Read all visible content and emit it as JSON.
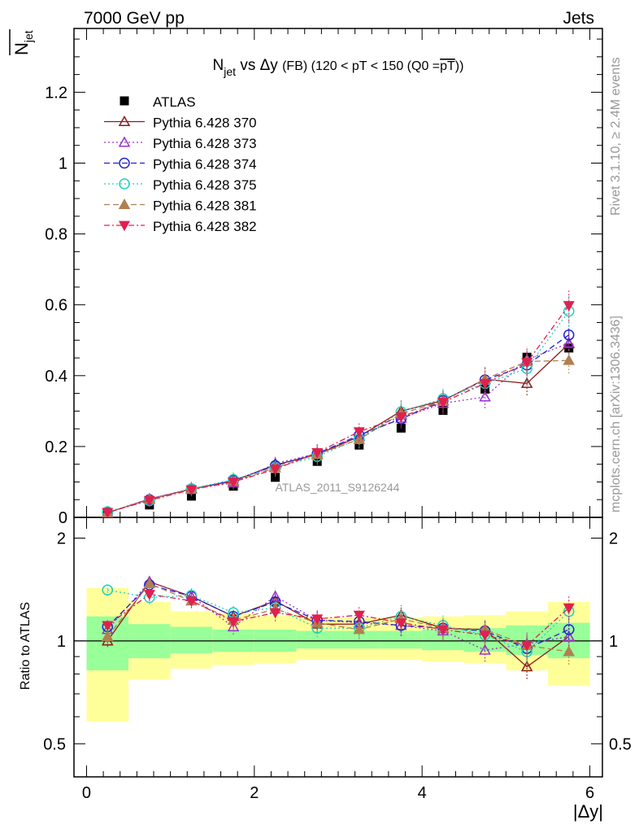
{
  "header": {
    "left": "7000 GeV pp",
    "right": "Jets"
  },
  "title": {
    "main": "N",
    "main_sub": "jet",
    "rest": " vs Δy ",
    "small1": "(FB)",
    "rest2": " (120 < pT < 150 (Q0 =",
    "over": "pT",
    "end": "))"
  },
  "ylabel_top": {
    "main": "N",
    "sub": "jet"
  },
  "ylabel_ratio": "Ratio to ATLAS",
  "xlabel": "|Δy|",
  "side_label_top": "Rivet 3.1.10, ≥ 2.4M events",
  "side_label_bottom": "mcplots.cern.ch [arXiv:1306.3436]",
  "watermark": "ATLAS_2011_S9126244",
  "chart_data": {
    "type": "scatter",
    "x": [
      0.25,
      0.75,
      1.25,
      1.75,
      2.25,
      2.75,
      3.25,
      3.75,
      4.25,
      4.75,
      5.25,
      5.75
    ],
    "xlim": [
      -0.15,
      6.15
    ],
    "ylim": [
      0,
      1.38
    ],
    "ratio_ylim": [
      0.4,
      2.3
    ],
    "ratio_log": true,
    "xticks": [
      0,
      2,
      4,
      6
    ],
    "xtick_labels": [
      "0",
      "2",
      "4",
      "6"
    ],
    "yticks": [
      0,
      0.2,
      0.4,
      0.6,
      0.8,
      1,
      1.2
    ],
    "ytick_labels": [
      "0",
      "0.2",
      "0.4",
      "0.6",
      "0.8",
      "1",
      "1.2"
    ],
    "ratio_yticks": [
      0.5,
      1,
      2
    ],
    "ratio_ytick_labels": [
      "0.5",
      "1",
      "2"
    ],
    "data_series": {
      "name": "ATLAS",
      "values": [
        0.013,
        0.035,
        0.06,
        0.088,
        0.113,
        0.158,
        0.204,
        0.252,
        0.302,
        0.362,
        0.452,
        0.478
      ],
      "color": "#000000"
    },
    "band_green": [
      [
        0.82,
        1.18
      ],
      [
        0.89,
        1.12
      ],
      [
        0.92,
        1.1
      ],
      [
        0.93,
        1.08
      ],
      [
        0.93,
        1.08
      ],
      [
        0.95,
        1.07
      ],
      [
        0.95,
        1.07
      ],
      [
        0.95,
        1.07
      ],
      [
        0.94,
        1.08
      ],
      [
        0.93,
        1.09
      ],
      [
        0.91,
        1.11
      ],
      [
        0.89,
        1.13
      ]
    ],
    "band_yellow": [
      [
        0.58,
        1.43
      ],
      [
        0.77,
        1.3
      ],
      [
        0.83,
        1.22
      ],
      [
        0.85,
        1.2
      ],
      [
        0.86,
        1.19
      ],
      [
        0.88,
        1.17
      ],
      [
        0.88,
        1.17
      ],
      [
        0.88,
        1.17
      ],
      [
        0.87,
        1.18
      ],
      [
        0.86,
        1.19
      ],
      [
        0.82,
        1.22
      ],
      [
        0.74,
        1.3
      ]
    ],
    "series": [
      {
        "name": "Pythia 6.428 370",
        "color": "#8b1a1a",
        "marker": "triangle-open",
        "dash": "",
        "values": [
          0.013,
          0.052,
          0.08,
          0.103,
          0.148,
          0.177,
          0.228,
          0.3,
          0.33,
          0.39,
          0.378,
          0.49
        ],
        "ratio": [
          1.0,
          1.49,
          1.35,
          1.18,
          1.31,
          1.12,
          1.12,
          1.19,
          1.09,
          1.08,
          0.84,
          1.03
        ]
      },
      {
        "name": "Pythia 6.428 373",
        "color": "#9932cc",
        "marker": "triangle-open",
        "dash": "2,3",
        "values": [
          0.014,
          0.052,
          0.081,
          0.097,
          0.152,
          0.18,
          0.23,
          0.28,
          0.322,
          0.34,
          0.445,
          0.492
        ],
        "ratio": [
          1.08,
          1.49,
          1.35,
          1.1,
          1.35,
          1.15,
          1.13,
          1.11,
          1.07,
          0.94,
          0.98,
          1.03
        ]
      },
      {
        "name": "Pythia 6.428 374",
        "color": "#2222cc",
        "marker": "circle-open",
        "dash": "7,4",
        "values": [
          0.014,
          0.05,
          0.08,
          0.104,
          0.146,
          0.18,
          0.232,
          0.278,
          0.33,
          0.388,
          0.43,
          0.515
        ],
        "ratio": [
          1.1,
          1.46,
          1.35,
          1.18,
          1.3,
          1.15,
          1.14,
          1.11,
          1.09,
          1.07,
          0.95,
          1.08
        ]
      },
      {
        "name": "Pythia 6.428 375",
        "color": "#20d0c0",
        "marker": "circle-open",
        "dash": "2,3",
        "values": [
          0.016,
          0.047,
          0.081,
          0.107,
          0.141,
          0.172,
          0.222,
          0.298,
          0.335,
          0.378,
          0.42,
          0.582
        ],
        "ratio": [
          1.41,
          1.34,
          1.36,
          1.21,
          1.25,
          1.09,
          1.09,
          1.18,
          1.11,
          1.04,
          0.93,
          1.22
        ]
      },
      {
        "name": "Pythia 6.428 381",
        "color": "#b08050",
        "marker": "triangle-filled",
        "dash": "7,4",
        "values": [
          0.013,
          0.051,
          0.079,
          0.101,
          0.14,
          0.178,
          0.22,
          0.293,
          0.328,
          0.39,
          0.44,
          0.443
        ],
        "ratio": [
          1.03,
          1.47,
          1.31,
          1.15,
          1.24,
          1.13,
          1.08,
          1.16,
          1.09,
          1.08,
          0.97,
          0.93
        ]
      },
      {
        "name": "Pythia 6.428 382",
        "color": "#e02050",
        "marker": "triangle-down-filled",
        "dash": "7,3,2,3",
        "values": [
          0.014,
          0.048,
          0.078,
          0.1,
          0.136,
          0.183,
          0.242,
          0.284,
          0.325,
          0.378,
          0.437,
          0.598
        ],
        "ratio": [
          1.11,
          1.37,
          1.31,
          1.14,
          1.21,
          1.16,
          1.19,
          1.13,
          1.08,
          1.04,
          0.97,
          1.25
        ]
      }
    ]
  }
}
